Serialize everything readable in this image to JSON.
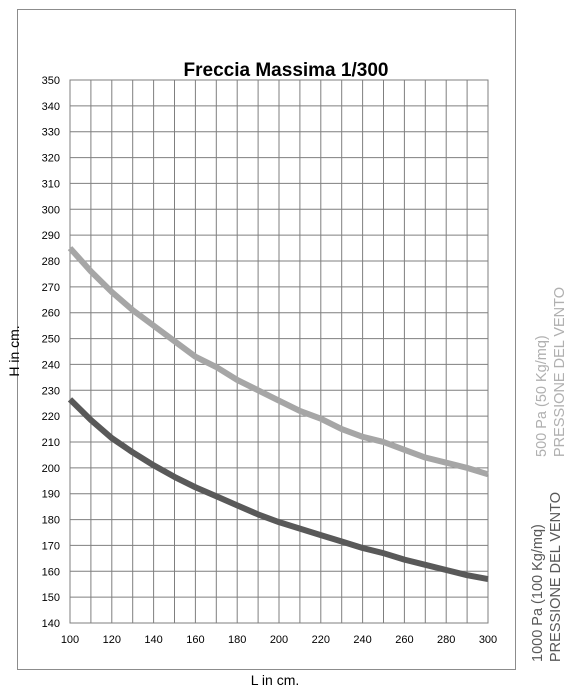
{
  "chart_data": {
    "type": "line",
    "title": "Freccia Massima 1/300",
    "xlabel": "L in cm.",
    "ylabel": "H in cm.",
    "xlim": [
      100,
      300
    ],
    "ylim": [
      140,
      350
    ],
    "x_ticks": [
      100,
      120,
      140,
      160,
      180,
      200,
      220,
      240,
      260,
      280,
      300
    ],
    "y_ticks": [
      140,
      150,
      160,
      170,
      180,
      190,
      200,
      210,
      220,
      230,
      240,
      250,
      260,
      270,
      280,
      290,
      300,
      310,
      320,
      330,
      340,
      350
    ],
    "grid": true,
    "x": [
      100,
      110,
      120,
      130,
      140,
      150,
      160,
      170,
      180,
      190,
      200,
      210,
      220,
      230,
      240,
      250,
      260,
      270,
      280,
      290,
      300
    ],
    "series": [
      {
        "color": "#a6a6a6",
        "values": [
          285,
          276,
          268,
          261,
          255,
          249,
          243,
          239,
          234,
          230,
          226,
          222,
          219,
          215,
          212,
          210,
          207,
          204,
          202,
          200,
          197.5
        ]
      },
      {
        "color": "#595959",
        "values": [
          226.5,
          218.5,
          211.5,
          206,
          201,
          196.5,
          192.5,
          189,
          185.5,
          182,
          179,
          176.5,
          174,
          171.5,
          169,
          167,
          164.5,
          162.5,
          160.5,
          158.5,
          157
        ]
      }
    ],
    "legend": {
      "placement": "right",
      "entries": [
        {
          "lines": [
            "500 Pa (50 Kg/mq)",
            "PRESSIONE DEL VENTO"
          ],
          "color": "#b0b0b0"
        },
        {
          "lines": [
            "1000 Pa (100 Kg/mq)",
            "PRESSIONE DEL VENTO"
          ],
          "color": "#595959"
        }
      ]
    }
  }
}
